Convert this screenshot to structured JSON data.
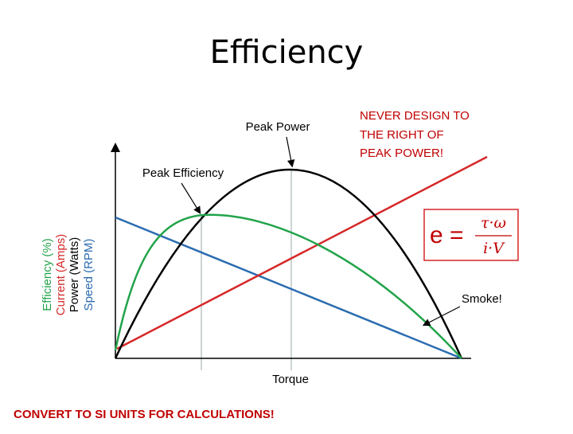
{
  "title": "Efficiency",
  "y_axis_labels": [
    "Efficiency (%)",
    "Current (Amps)",
    "Power (Watts)",
    "Speed (RPM)"
  ],
  "x_axis_label": "Torque",
  "annotations": {
    "peak_power": "Peak Power",
    "peak_efficiency": "Peak Efficiency",
    "smoke": "Smoke!",
    "warning": [
      "NEVER DESIGN TO",
      "THE RIGHT OF",
      "PEAK POWER!"
    ]
  },
  "formula": {
    "lhs": "e =",
    "numerator": "τ·ω",
    "denominator": "i·V"
  },
  "footer": "CONVERT TO SI UNITS FOR CALCULATIONS!"
}
